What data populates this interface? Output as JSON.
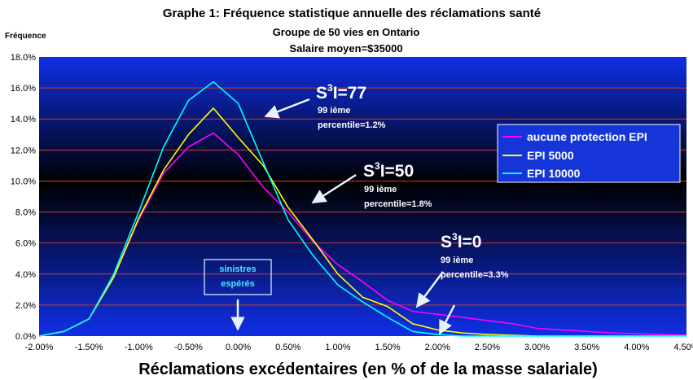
{
  "chart_data": {
    "type": "line",
    "title": "Graphe 1: Fréquence statistique annuelle des réclamations santé",
    "subtitle_1": "Groupe de 50 vies en Ontario",
    "subtitle_2": "Salaire moyen=$35000",
    "ylabel": "Fréquence",
    "xlabel": "Réclamations excédentaires (en % of de la masse salariale)",
    "xlim": [
      -2.0,
      4.5
    ],
    "ylim": [
      0,
      18
    ],
    "x_ticks": [
      "-2.00%",
      "-1.50%",
      "-1.00%",
      "-0.50%",
      "0.00%",
      "0.50%",
      "1.00%",
      "1.50%",
      "2.00%",
      "2.50%",
      "3.00%",
      "3.50%",
      "4.00%",
      "4.50%"
    ],
    "y_ticks": [
      "0.0%",
      "2.0%",
      "4.0%",
      "6.0%",
      "8.0%",
      "10.0%",
      "12.0%",
      "14.0%",
      "16.0%",
      "18.0%"
    ],
    "grid": true,
    "legend_position": "right",
    "x": [
      -2.0,
      -1.75,
      -1.5,
      -1.25,
      -1.0,
      -0.75,
      -0.5,
      -0.25,
      0.0,
      0.25,
      0.5,
      0.75,
      1.0,
      1.25,
      1.5,
      1.75,
      2.0,
      2.25,
      2.5,
      2.75,
      3.0,
      3.25,
      3.5,
      3.75,
      4.0,
      4.25,
      4.5
    ],
    "series": [
      {
        "name": "aucune protection EPI",
        "color": "#ff00ff",
        "values": [
          0.0,
          0.3,
          1.1,
          3.8,
          7.5,
          10.5,
          12.2,
          13.1,
          11.7,
          9.6,
          8.0,
          6.1,
          4.6,
          3.5,
          2.3,
          1.6,
          1.4,
          1.2,
          1.0,
          0.8,
          0.5,
          0.4,
          0.3,
          0.2,
          0.15,
          0.1,
          0.05
        ]
      },
      {
        "name": "EPI 5000",
        "color": "#ffff00",
        "values": [
          0.0,
          0.3,
          1.1,
          3.8,
          7.6,
          10.7,
          13.0,
          14.7,
          12.8,
          11.0,
          8.3,
          6.2,
          4.0,
          2.5,
          1.9,
          0.8,
          0.4,
          0.2,
          0.1,
          0.05,
          0.0,
          0.0,
          0.0,
          0.0,
          0.0,
          0.0,
          0.0
        ]
      },
      {
        "name": "EPI 10000",
        "color": "#00ffff",
        "values": [
          0.0,
          0.3,
          1.1,
          4.0,
          8.0,
          12.2,
          15.2,
          16.4,
          15.0,
          11.2,
          7.5,
          5.2,
          3.3,
          2.2,
          1.2,
          0.3,
          0.1,
          0.0,
          0.0,
          0.0,
          0.0,
          0.0,
          0.0,
          0.0,
          0.0,
          0.0,
          0.0
        ]
      }
    ],
    "annotations": [
      {
        "head": "S",
        "sup": "3",
        "tail": "I=77",
        "line1": "99 ième",
        "line2": "percentile=1.2%"
      },
      {
        "head": "S",
        "sup": "3",
        "tail": "I=50",
        "line1": "99 ième",
        "line2": "percentile=1.8%"
      },
      {
        "head": "S",
        "sup": "3",
        "tail": "I=0",
        "line1": "99 ième",
        "line2": "percentile=3.3%"
      }
    ],
    "boxed_label": {
      "line1": "sinistres",
      "line2": "espérés"
    }
  },
  "colors": {
    "plot_gradient": [
      "#0f2fe6",
      "#000000",
      "#0f2fe6"
    ],
    "gridline": "#cc3a2a",
    "legend_bg": "#1535d8",
    "arrow": "#e8f2ff",
    "boxed_label_text": "#49e8ff"
  }
}
